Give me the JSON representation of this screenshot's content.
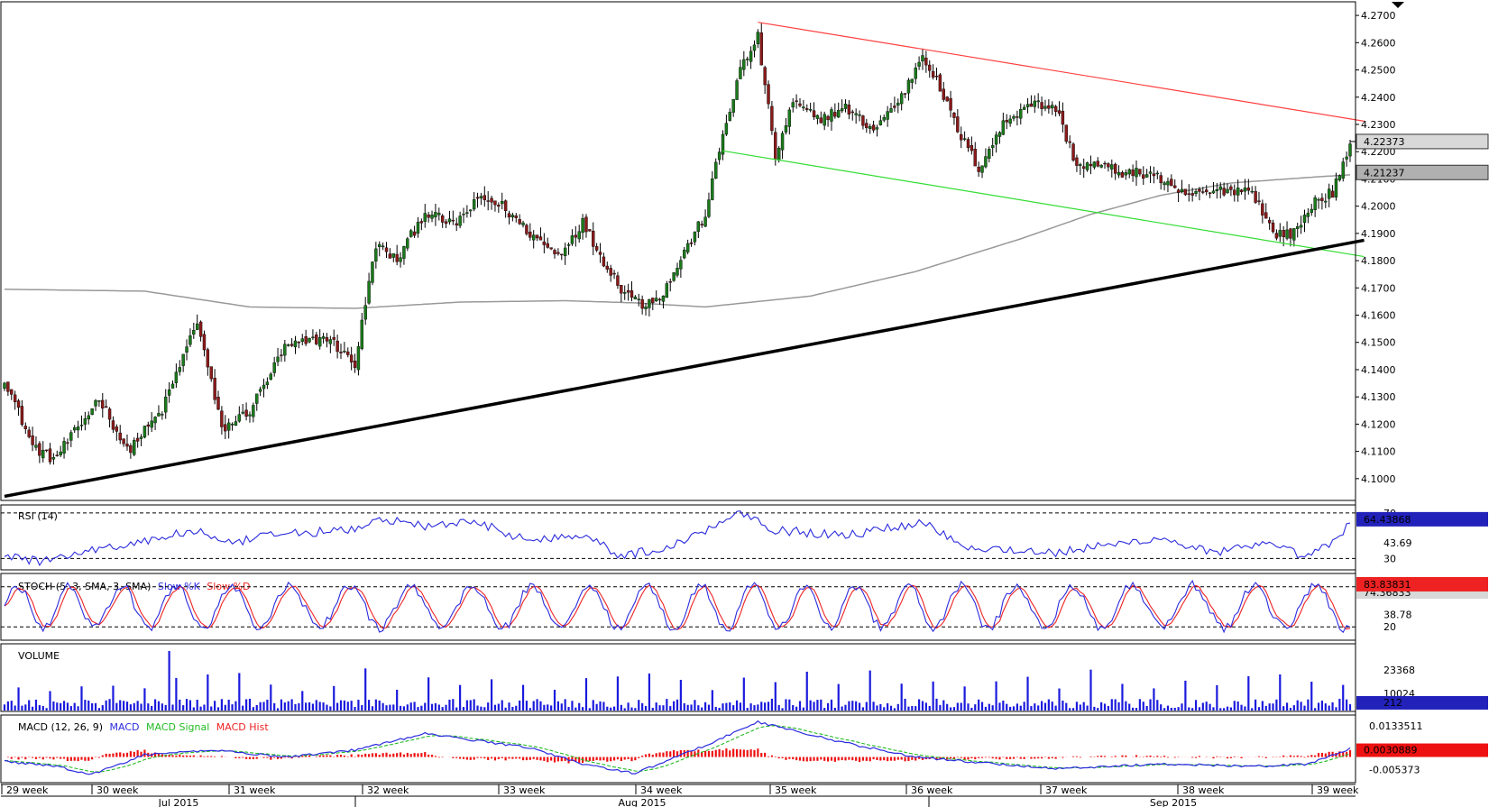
{
  "colors": {
    "bull": "#1a7a1a",
    "bear": "#8b1a1a",
    "channel_upper": "#ff4040",
    "channel_lower": "#33dd33",
    "trendline": "#000000",
    "sma": "#999999",
    "rsi": "#2b2bdd",
    "stoch_k": "#2b2bdd",
    "stoch_d": "#ee2222",
    "volume": "#1a1add",
    "macd": "#2b2bdd",
    "macd_signal": "#22bb22",
    "macd_hist": "#ee1111"
  },
  "chart_data": [
    {
      "type": "candlestick",
      "name": "price",
      "ylim": [
        4.092,
        4.275
      ],
      "yticks": [
        "4.2700",
        "4.2600",
        "4.2500",
        "4.2400",
        "4.2300",
        "4.2200",
        "4.2100",
        "4.2000",
        "4.1900",
        "4.1800",
        "4.1700",
        "4.1600",
        "4.1500",
        "4.1400",
        "4.1300",
        "4.1200",
        "4.1100",
        "4.1000"
      ],
      "last_price_label": "4.22373",
      "sma_label": "4.21237",
      "x_week_labels": [
        "29 week",
        "30 week",
        "31 week",
        "32 week",
        "33 week",
        "34 week",
        "35 week",
        "36 week",
        "37 week",
        "38 week",
        "39 week"
      ],
      "x_month_labels": [
        "Jul 2015",
        "Aug 2015",
        "Sep 2015"
      ],
      "anchors": [
        [
          0,
          4.137
        ],
        [
          8,
          4.112
        ],
        [
          14,
          4.107
        ],
        [
          22,
          4.12
        ],
        [
          27,
          4.13
        ],
        [
          35,
          4.11
        ],
        [
          45,
          4.125
        ],
        [
          55,
          4.158
        ],
        [
          62,
          4.118
        ],
        [
          70,
          4.125
        ],
        [
          80,
          4.148
        ],
        [
          92,
          4.152
        ],
        [
          100,
          4.142
        ],
        [
          106,
          4.186
        ],
        [
          112,
          4.18
        ],
        [
          120,
          4.198
        ],
        [
          128,
          4.193
        ],
        [
          136,
          4.203
        ],
        [
          142,
          4.2
        ],
        [
          150,
          4.19
        ],
        [
          158,
          4.182
        ],
        [
          165,
          4.194
        ],
        [
          170,
          4.182
        ],
        [
          176,
          4.17
        ],
        [
          182,
          4.164
        ],
        [
          188,
          4.168
        ],
        [
          194,
          4.183
        ],
        [
          200,
          4.197
        ],
        [
          205,
          4.226
        ],
        [
          210,
          4.25
        ],
        [
          215,
          4.262
        ],
        [
          220,
          4.218
        ],
        [
          225,
          4.238
        ],
        [
          232,
          4.232
        ],
        [
          240,
          4.236
        ],
        [
          248,
          4.228
        ],
        [
          256,
          4.24
        ],
        [
          262,
          4.256
        ],
        [
          266,
          4.246
        ],
        [
          272,
          4.228
        ],
        [
          278,
          4.214
        ],
        [
          285,
          4.23
        ],
        [
          292,
          4.238
        ],
        [
          300,
          4.236
        ],
        [
          306,
          4.215
        ],
        [
          312,
          4.215
        ],
        [
          320,
          4.212
        ],
        [
          328,
          4.212
        ],
        [
          334,
          4.205
        ],
        [
          340,
          4.204
        ],
        [
          348,
          4.206
        ],
        [
          356,
          4.206
        ],
        [
          362,
          4.19
        ],
        [
          368,
          4.19
        ],
        [
          374,
          4.202
        ],
        [
          379,
          4.205
        ],
        [
          384,
          4.221
        ]
      ],
      "upper_channel": [
        [
          215,
          4.2675
        ],
        [
          388,
          4.2312
        ]
      ],
      "lower_channel": [
        [
          205,
          4.2203
        ],
        [
          388,
          4.1815
        ]
      ],
      "trendline": [
        [
          0,
          4.0935
        ],
        [
          388,
          4.1875
        ]
      ],
      "sma200_anchors": [
        [
          0,
          4.1695
        ],
        [
          40,
          4.1688
        ],
        [
          70,
          4.163
        ],
        [
          100,
          4.1625
        ],
        [
          130,
          4.1648
        ],
        [
          160,
          4.1653
        ],
        [
          180,
          4.1645
        ],
        [
          200,
          4.163
        ],
        [
          230,
          4.167
        ],
        [
          260,
          4.176
        ],
        [
          290,
          4.188
        ],
        [
          310,
          4.197
        ],
        [
          330,
          4.204
        ],
        [
          350,
          4.2085
        ],
        [
          375,
          4.2108
        ],
        [
          384,
          4.2115
        ]
      ]
    },
    {
      "type": "line",
      "name": "RSI",
      "title": "RSI (14)",
      "ylim": [
        20,
        77
      ],
      "levels": [
        70,
        30
      ],
      "level_labels": [
        "70",
        "30"
      ],
      "ytick_label": "43.69",
      "last_label": "64.43868",
      "anchors": [
        [
          0,
          33
        ],
        [
          10,
          27
        ],
        [
          20,
          35
        ],
        [
          40,
          45
        ],
        [
          55,
          55
        ],
        [
          62,
          42
        ],
        [
          80,
          52
        ],
        [
          100,
          55
        ],
        [
          108,
          65
        ],
        [
          120,
          58
        ],
        [
          135,
          62
        ],
        [
          150,
          45
        ],
        [
          165,
          52
        ],
        [
          176,
          32
        ],
        [
          190,
          40
        ],
        [
          200,
          55
        ],
        [
          210,
          72
        ],
        [
          220,
          55
        ],
        [
          240,
          50
        ],
        [
          262,
          62
        ],
        [
          275,
          40
        ],
        [
          300,
          35
        ],
        [
          330,
          48
        ],
        [
          345,
          35
        ],
        [
          360,
          42
        ],
        [
          372,
          32
        ],
        [
          380,
          45
        ],
        [
          384,
          62
        ]
      ]
    },
    {
      "type": "line",
      "name": "STOCH",
      "title": "STOCH (5, 3, SMA, 3, SMA)",
      "series_names": [
        "Slow %K",
        "Slow %D"
      ],
      "ylim": [
        0,
        100
      ],
      "levels": [
        80,
        20
      ],
      "level_labels": [
        "80",
        "20"
      ],
      "ytick_label": "38.78",
      "last_labels": [
        "83.83831",
        "74.36833"
      ],
      "period": 16,
      "amplitude": 32,
      "center": 50
    },
    {
      "type": "bar",
      "name": "VOLUME",
      "title": "VOLUME",
      "ylim": [
        0,
        36000
      ],
      "ytick_labels": [
        {
          "label": "23368",
          "value": 23368
        },
        {
          "label": "10024",
          "value": 10024
        }
      ],
      "last_label": "212",
      "base_level": 6000,
      "spike_level": 22000
    },
    {
      "type": "line",
      "name": "MACD",
      "title": "MACD (12, 26, 9)",
      "series_names": [
        "MACD",
        "MACD Signal",
        "MACD Hist"
      ],
      "ylim": [
        -0.011,
        0.018
      ],
      "ytick_labels": [
        {
          "label": "0.0133511",
          "value": 0.0133511
        },
        {
          "label": "-0.005373",
          "value": -0.005373
        }
      ],
      "last_label": "0.0030889",
      "macd_anchors": [
        [
          0,
          -0.002
        ],
        [
          15,
          -0.004
        ],
        [
          25,
          -0.0075
        ],
        [
          40,
          0.001
        ],
        [
          60,
          0.003
        ],
        [
          80,
          0.0
        ],
        [
          100,
          0.003
        ],
        [
          120,
          0.01
        ],
        [
          150,
          0.004
        ],
        [
          165,
          -0.003
        ],
        [
          180,
          -0.007
        ],
        [
          200,
          0.005
        ],
        [
          215,
          0.015
        ],
        [
          240,
          0.006
        ],
        [
          260,
          0.0
        ],
        [
          275,
          -0.002
        ],
        [
          300,
          -0.005
        ],
        [
          330,
          -0.003
        ],
        [
          360,
          -0.004
        ],
        [
          372,
          -0.003
        ],
        [
          384,
          0.0035
        ]
      ]
    }
  ]
}
